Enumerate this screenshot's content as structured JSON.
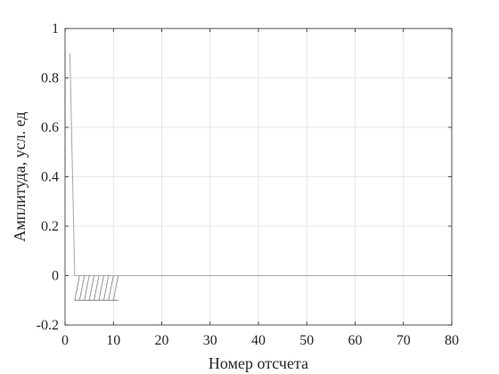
{
  "chart_data": {
    "type": "line",
    "title": "",
    "xlabel": "Номер отсчета",
    "ylabel": "Амплитуда, усл. ед",
    "xlim": [
      0,
      80
    ],
    "ylim": [
      -0.2,
      1
    ],
    "xticks": [
      0,
      10,
      20,
      30,
      40,
      50,
      60,
      70,
      80
    ],
    "xtick_labels": [
      "0",
      "10",
      "20",
      "30",
      "40",
      "50",
      "60",
      "70",
      "80"
    ],
    "yticks": [
      -0.2,
      0,
      0.2,
      0.4,
      0.6,
      0.8,
      1
    ],
    "ytick_labels": [
      "-0.2",
      "0",
      "0.2",
      "0.4",
      "0.6",
      "0.8",
      "1"
    ],
    "grid": true,
    "legend": "none",
    "series": [
      {
        "color": "#a6a6a6",
        "x": [
          1,
          2,
          3,
          4,
          5,
          6,
          7,
          8,
          9,
          10,
          11,
          12,
          20,
          30,
          40,
          50,
          60,
          70,
          80
        ],
        "y": [
          0.9,
          0.0,
          0.0,
          0.0,
          0.0,
          0.0,
          0.0,
          0.0,
          0.0,
          0.0,
          0.0,
          0.0,
          0.0,
          0.0,
          0.0,
          0.0,
          0.0,
          0.0,
          0.0
        ]
      }
    ],
    "hatch_region": {
      "x_start": 2,
      "x_end": 11,
      "y_top": 0.0,
      "y_bottom": -0.1,
      "color": "#7f7f7f"
    }
  }
}
